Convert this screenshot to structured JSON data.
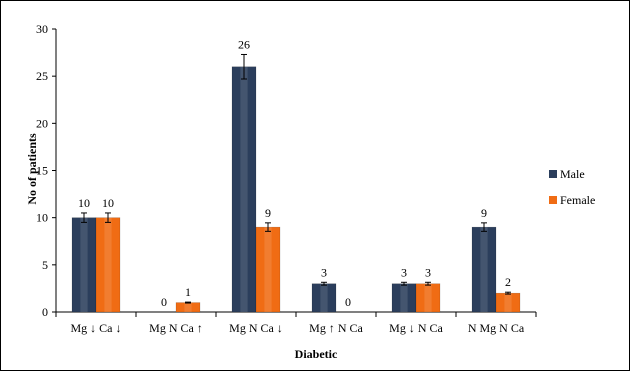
{
  "chart_data": {
    "type": "bar",
    "categories": [
      "Mg ↓ Ca ↓",
      "Mg N Ca ↑",
      "Mg N Ca ↓",
      "Mg ↑ N Ca",
      "Mg ↓ N Ca",
      "N Mg  N Ca"
    ],
    "series": [
      {
        "name": "Male",
        "values": [
          10,
          0,
          26,
          3,
          3,
          9
        ],
        "errors": [
          0.5,
          0,
          1.3,
          0.15,
          0.15,
          0.45
        ],
        "color": "#2b3e5c"
      },
      {
        "name": "Female",
        "values": [
          10,
          1,
          9,
          0,
          3,
          2
        ],
        "errors": [
          0.5,
          0.05,
          0.45,
          0,
          0.15,
          0.1
        ],
        "color": "#f06c14"
      }
    ],
    "xlabel": "Diabetic",
    "ylabel": "No of patients",
    "ylim": [
      0,
      30
    ],
    "yticks": [
      0,
      5,
      10,
      15,
      20,
      25,
      30
    ],
    "grid": false,
    "legend": "right"
  }
}
